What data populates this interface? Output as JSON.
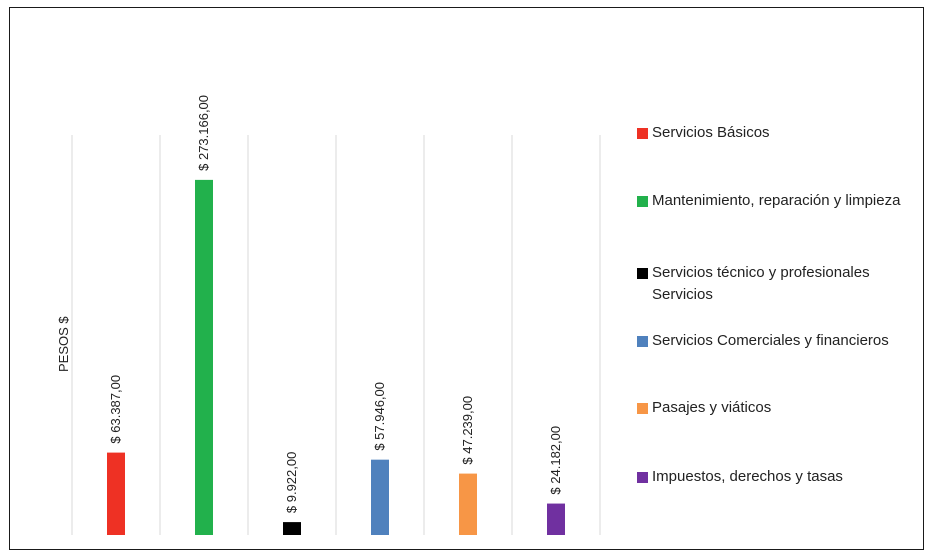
{
  "chart_data": {
    "type": "bar",
    "ylabel": "PESOS $",
    "categories": [
      "Servicios Básicos",
      "Mantenimiento, reparación y limpieza",
      "Servicios técnico y profesionales Servicios",
      "Servicios Comerciales y financieros",
      "Pasajes y viáticos",
      "Impuestos, derechos y tasas"
    ],
    "values": [
      63387,
      273166,
      9922,
      57946,
      47239,
      24182
    ],
    "data_labels": [
      "$ 63.387,00",
      "$ 273.166,00",
      "$ 9.922,00",
      "$ 57.946,00",
      "$ 47.239,00",
      "$ 24.182,00"
    ],
    "colors": [
      "#ee3124",
      "#22b14c",
      "#000000",
      "#4f81bd",
      "#f79646",
      "#7030a0"
    ],
    "ylim": [
      0,
      290000
    ],
    "grid": "vertical",
    "legend_position": "right"
  }
}
